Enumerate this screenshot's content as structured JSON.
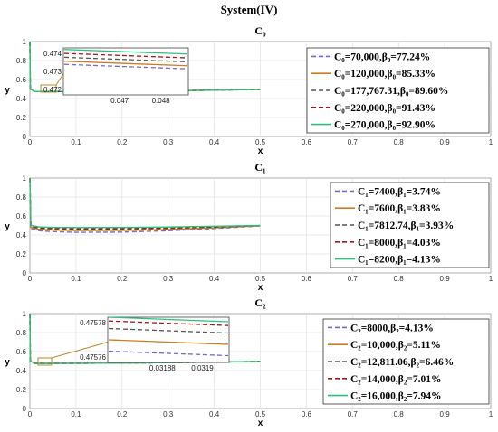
{
  "figure": {
    "title": "System(IV)"
  },
  "chart_data": [
    {
      "type": "line",
      "title": "C₀",
      "xlabel": "x",
      "ylabel": "y",
      "xlim": [
        0,
        1
      ],
      "ylim": [
        0,
        1
      ],
      "xticks": [
        "0",
        "0.1",
        "0.2",
        "0.3",
        "0.4",
        "0.5",
        "0.6",
        "0.7",
        "0.8",
        "0.9",
        "1"
      ],
      "yticks": [
        "0",
        "0.2",
        "0.4",
        "0.6",
        "0.8",
        "1"
      ],
      "grid": true,
      "legend_position": "right",
      "series": [
        {
          "name": "C₀=70,000,β₀=77.24%",
          "color": "#7b68c9",
          "dash": "dash",
          "x": [
            0,
            0.001,
            0.01,
            0.05,
            0.1,
            0.2,
            0.3,
            0.4,
            0.5
          ],
          "y": [
            1,
            0.5,
            0.473,
            0.4725,
            0.473,
            0.476,
            0.481,
            0.488,
            0.495
          ]
        },
        {
          "name": "C₀=120,000,β₀=85.33%",
          "color": "#c87d1e",
          "dash": "solid",
          "x": [
            0,
            0.001,
            0.01,
            0.05,
            0.1,
            0.2,
            0.3,
            0.4,
            0.5
          ],
          "y": [
            1,
            0.5,
            0.4732,
            0.4728,
            0.4733,
            0.4763,
            0.4812,
            0.4882,
            0.4952
          ]
        },
        {
          "name": "C₀=177,767.31,β₀=89.60%",
          "color": "#555555",
          "dash": "dash",
          "x": [
            0,
            0.001,
            0.01,
            0.05,
            0.1,
            0.2,
            0.3,
            0.4,
            0.5
          ],
          "y": [
            1,
            0.5,
            0.4734,
            0.473,
            0.4735,
            0.4765,
            0.4814,
            0.4884,
            0.4954
          ]
        },
        {
          "name": "C₀=220,000,β₀=91.43%",
          "color": "#a01818",
          "dash": "dash",
          "x": [
            0,
            0.001,
            0.01,
            0.05,
            0.1,
            0.2,
            0.3,
            0.4,
            0.5
          ],
          "y": [
            1,
            0.5,
            0.4736,
            0.4732,
            0.4737,
            0.4767,
            0.4816,
            0.4886,
            0.4956
          ]
        },
        {
          "name": "C₀=270,000,β₀=92.90%",
          "color": "#2fbf7f",
          "dash": "solid",
          "x": [
            0,
            0.001,
            0.01,
            0.05,
            0.1,
            0.2,
            0.3,
            0.4,
            0.5
          ],
          "y": [
            1,
            0.5,
            0.4738,
            0.4734,
            0.4739,
            0.4769,
            0.4818,
            0.4888,
            0.4958
          ]
        }
      ],
      "inset": {
        "xlim": [
          0.0465,
          0.0485
        ],
        "ylim": [
          0.4715,
          0.4745
        ],
        "xticks": [
          "0.047",
          "0.048"
        ],
        "yticks": [
          "0.472",
          "0.473",
          "0.474"
        ],
        "lines_y": [
          0.47345,
          0.47365,
          0.4739,
          0.47415,
          0.4744
        ]
      }
    },
    {
      "type": "line",
      "title": "C₁",
      "xlabel": "x",
      "ylabel": "y",
      "xlim": [
        0,
        1
      ],
      "ylim": [
        0,
        1
      ],
      "xticks": [
        "0",
        "0.1",
        "0.2",
        "0.3",
        "0.4",
        "0.5",
        "0.6",
        "0.7",
        "0.8",
        "0.9",
        "1"
      ],
      "yticks": [
        "0",
        "0.2",
        "0.4",
        "0.6",
        "0.8",
        "1"
      ],
      "grid": true,
      "legend_position": "right",
      "series": [
        {
          "name": "C₁=7400,β₁=3.74%",
          "color": "#7b68c9",
          "dash": "dash",
          "x": [
            0,
            0.002,
            0.02,
            0.05,
            0.1,
            0.2,
            0.3,
            0.4,
            0.5
          ],
          "y": [
            1,
            0.47,
            0.445,
            0.435,
            0.428,
            0.43,
            0.445,
            0.468,
            0.495
          ]
        },
        {
          "name": "C₁=7600,β₁=3.83%",
          "color": "#c87d1e",
          "dash": "solid",
          "x": [
            0,
            0.002,
            0.02,
            0.05,
            0.1,
            0.2,
            0.3,
            0.4,
            0.5
          ],
          "y": [
            1,
            0.48,
            0.46,
            0.452,
            0.447,
            0.448,
            0.458,
            0.476,
            0.497
          ]
        },
        {
          "name": "C₁=7812.74,β₁=3.93%",
          "color": "#555555",
          "dash": "dash",
          "x": [
            0,
            0.002,
            0.02,
            0.05,
            0.1,
            0.2,
            0.3,
            0.4,
            0.5
          ],
          "y": [
            1,
            0.49,
            0.47,
            0.464,
            0.46,
            0.461,
            0.469,
            0.483,
            0.498
          ]
        },
        {
          "name": "C₁=8000,β₁=4.03%",
          "color": "#a01818",
          "dash": "dash",
          "x": [
            0,
            0.002,
            0.02,
            0.05,
            0.1,
            0.2,
            0.3,
            0.4,
            0.5
          ],
          "y": [
            1,
            0.495,
            0.478,
            0.472,
            0.469,
            0.47,
            0.477,
            0.488,
            0.499
          ]
        },
        {
          "name": "C₁=8200,β₁=4.13%",
          "color": "#2fbf7f",
          "dash": "solid",
          "x": [
            0,
            0.002,
            0.02,
            0.05,
            0.1,
            0.2,
            0.3,
            0.4,
            0.5
          ],
          "y": [
            1,
            0.5,
            0.485,
            0.48,
            0.478,
            0.479,
            0.484,
            0.492,
            0.5
          ]
        }
      ]
    },
    {
      "type": "line",
      "title": "C₂",
      "xlabel": "x",
      "ylabel": "y",
      "xlim": [
        0,
        1
      ],
      "ylim": [
        0,
        1
      ],
      "xticks": [
        "0",
        "0.1",
        "0.2",
        "0.3",
        "0.4",
        "0.5",
        "0.6",
        "0.7",
        "0.8",
        "0.9",
        "1"
      ],
      "yticks": [
        "0",
        "0.2",
        "0.4",
        "0.6",
        "0.8",
        "1"
      ],
      "grid": true,
      "legend_position": "right",
      "series": [
        {
          "name": "C₂=8000,β₂=4.13%",
          "color": "#7b68c9",
          "dash": "dash",
          "x": [
            0,
            0.001,
            0.01,
            0.03,
            0.1,
            0.2,
            0.3,
            0.4,
            0.5
          ],
          "y": [
            1,
            0.5,
            0.476,
            0.4757,
            0.4762,
            0.4792,
            0.4835,
            0.4895,
            0.4955
          ]
        },
        {
          "name": "C₂=10,000,β₂=5.11%",
          "color": "#c87d1e",
          "dash": "solid",
          "x": [
            0,
            0.001,
            0.01,
            0.03,
            0.1,
            0.2,
            0.3,
            0.4,
            0.5
          ],
          "y": [
            1,
            0.5,
            0.4762,
            0.4758,
            0.4764,
            0.4794,
            0.4837,
            0.4897,
            0.4957
          ]
        },
        {
          "name": "C₂=12,811.06,β₂=6.46%",
          "color": "#555555",
          "dash": "dash",
          "x": [
            0,
            0.001,
            0.01,
            0.03,
            0.1,
            0.2,
            0.3,
            0.4,
            0.5
          ],
          "y": [
            1,
            0.5,
            0.4763,
            0.4759,
            0.4765,
            0.4795,
            0.4838,
            0.4898,
            0.4958
          ]
        },
        {
          "name": "C₂=14,000,β₂=7.01%",
          "color": "#a01818",
          "dash": "dash",
          "x": [
            0,
            0.001,
            0.01,
            0.03,
            0.1,
            0.2,
            0.3,
            0.4,
            0.5
          ],
          "y": [
            1,
            0.5,
            0.4764,
            0.476,
            0.4766,
            0.4796,
            0.4839,
            0.4899,
            0.4959
          ]
        },
        {
          "name": "C₂=16,000,β₂=7.94%",
          "color": "#2fbf7f",
          "dash": "solid",
          "x": [
            0,
            0.001,
            0.01,
            0.03,
            0.1,
            0.2,
            0.3,
            0.4,
            0.5
          ],
          "y": [
            1,
            0.5,
            0.4765,
            0.4761,
            0.4767,
            0.4797,
            0.484,
            0.49,
            0.496
          ]
        }
      ],
      "inset": {
        "xlim": [
          0.0318,
          0.03194
        ],
        "ylim": [
          0.47574,
          0.4758
        ],
        "xticks": [
          "0.03188",
          "0.0319"
        ],
        "yticks": [
          "0.47576",
          "0.47578"
        ],
        "lines_y": [
          0.475755,
          0.47577,
          0.475785,
          0.475795,
          0.4758
        ]
      }
    }
  ]
}
